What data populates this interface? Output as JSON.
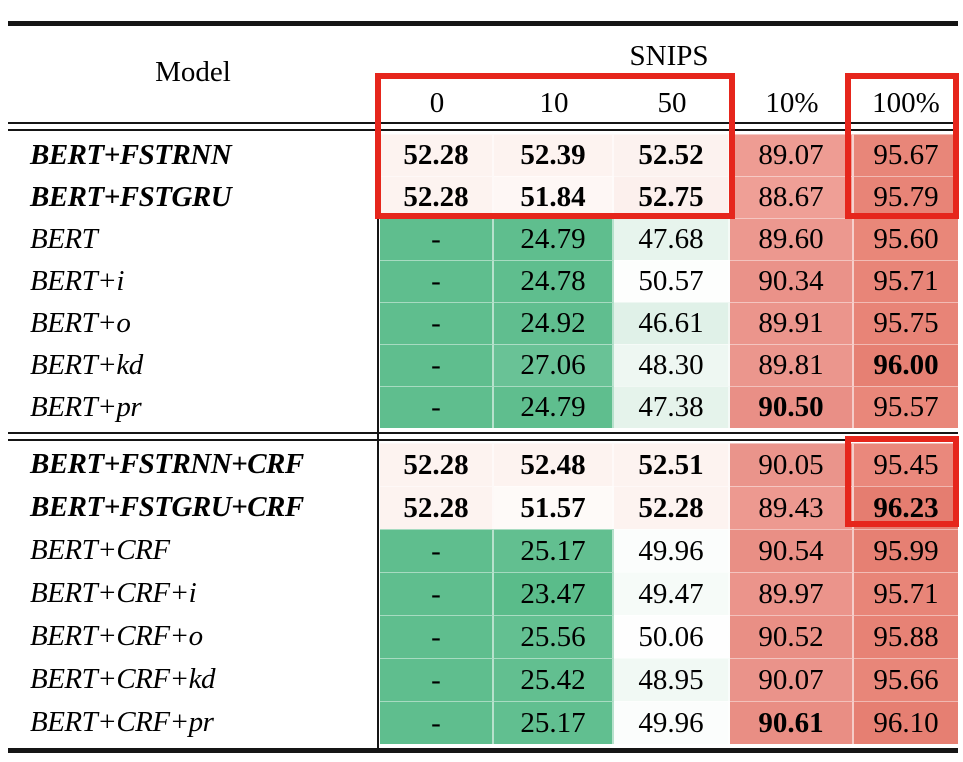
{
  "figure": {
    "type": "paper-results-table",
    "dataset_group_label": "SNIPS"
  },
  "table": {
    "header": {
      "model_label": "Model",
      "group_label": "SNIPS",
      "columns": [
        "0",
        "10",
        "50",
        "10%",
        "100%"
      ]
    },
    "colors": {
      "highlight_box": "#e6261c",
      "rule": "#151515",
      "green_base": "#5fbe8e",
      "salmon_10pct": "#ec9a90",
      "salmon_100pct": "#e8857a",
      "page_bg": "#ffffff"
    },
    "sections": [
      {
        "name": "without-crf",
        "rows": [
          {
            "model": "BERT+FSTRNN",
            "strong": true,
            "cells": [
              {
                "v": "52.28",
                "b": true,
                "bg": "#fdf3f0"
              },
              {
                "v": "52.39",
                "b": true,
                "bg": "#fdf3f0"
              },
              {
                "v": "52.52",
                "b": true,
                "bg": "#fcf2ef"
              },
              {
                "v": "89.07",
                "b": false,
                "bg": "#ee9c93"
              },
              {
                "v": "95.67",
                "b": false,
                "bg": "#e88679"
              }
            ]
          },
          {
            "model": "BERT+FSTGRU",
            "strong": true,
            "cells": [
              {
                "v": "52.28",
                "b": true,
                "bg": "#fdf3f0"
              },
              {
                "v": "51.84",
                "b": true,
                "bg": "#fef7f5"
              },
              {
                "v": "52.75",
                "b": true,
                "bg": "#fcf0ed"
              },
              {
                "v": "88.67",
                "b": false,
                "bg": "#ef9f96"
              },
              {
                "v": "95.79",
                "b": false,
                "bg": "#e88477"
              }
            ]
          },
          {
            "model": "BERT",
            "strong": false,
            "cells": [
              {
                "v": "-",
                "b": false,
                "bg": "#5fbe8e"
              },
              {
                "v": "24.79",
                "b": false,
                "bg": "#5fbe8e"
              },
              {
                "v": "47.68",
                "b": false,
                "bg": "#e7f4ed"
              },
              {
                "v": "89.60",
                "b": false,
                "bg": "#ec988f"
              },
              {
                "v": "95.60",
                "b": false,
                "bg": "#e98779"
              }
            ]
          },
          {
            "model": "BERT+i",
            "strong": false,
            "cells": [
              {
                "v": "-",
                "b": false,
                "bg": "#5fbe8e"
              },
              {
                "v": "24.78",
                "b": false,
                "bg": "#5fbe8e"
              },
              {
                "v": "50.57",
                "b": false,
                "bg": "#fdfefd"
              },
              {
                "v": "90.34",
                "b": false,
                "bg": "#ea9289"
              },
              {
                "v": "95.71",
                "b": false,
                "bg": "#e88578"
              }
            ]
          },
          {
            "model": "BERT+o",
            "strong": false,
            "cells": [
              {
                "v": "-",
                "b": false,
                "bg": "#5fbe8e"
              },
              {
                "v": "24.92",
                "b": false,
                "bg": "#60be8f"
              },
              {
                "v": "46.61",
                "b": false,
                "bg": "#e0f1e8"
              },
              {
                "v": "89.91",
                "b": false,
                "bg": "#eb958c"
              },
              {
                "v": "95.75",
                "b": false,
                "bg": "#e88477"
              }
            ]
          },
          {
            "model": "BERT+kd",
            "strong": false,
            "cells": [
              {
                "v": "-",
                "b": false,
                "bg": "#5fbe8e"
              },
              {
                "v": "27.06",
                "b": false,
                "bg": "#69c296"
              },
              {
                "v": "48.30",
                "b": false,
                "bg": "#eef7f2"
              },
              {
                "v": "89.81",
                "b": false,
                "bg": "#eb968d"
              },
              {
                "v": "96.00",
                "b": true,
                "bg": "#e68073"
              }
            ]
          },
          {
            "model": "BERT+pr",
            "strong": false,
            "cells": [
              {
                "v": "-",
                "b": false,
                "bg": "#5fbe8e"
              },
              {
                "v": "24.79",
                "b": false,
                "bg": "#5fbe8e"
              },
              {
                "v": "47.38",
                "b": false,
                "bg": "#e5f3eb"
              },
              {
                "v": "90.50",
                "b": true,
                "bg": "#e98f86"
              },
              {
                "v": "95.57",
                "b": false,
                "bg": "#e9877a"
              }
            ]
          }
        ]
      },
      {
        "name": "with-crf",
        "rows": [
          {
            "model": "BERT+FSTRNN+CRF",
            "strong": true,
            "cells": [
              {
                "v": "52.28",
                "b": true,
                "bg": "#fdf3f0"
              },
              {
                "v": "52.48",
                "b": true,
                "bg": "#fdf3f0"
              },
              {
                "v": "52.51",
                "b": true,
                "bg": "#fdf3f0"
              },
              {
                "v": "90.05",
                "b": false,
                "bg": "#ea948b"
              },
              {
                "v": "95.45",
                "b": false,
                "bg": "#ea887c"
              }
            ]
          },
          {
            "model": "BERT+FSTGRU+CRF",
            "strong": true,
            "cells": [
              {
                "v": "52.28",
                "b": true,
                "bg": "#fdf3f0"
              },
              {
                "v": "51.57",
                "b": true,
                "bg": "#fefaf8"
              },
              {
                "v": "52.28",
                "b": true,
                "bg": "#fdf3f0"
              },
              {
                "v": "89.43",
                "b": false,
                "bg": "#ed9990"
              },
              {
                "v": "96.23",
                "b": true,
                "bg": "#e57d70"
              }
            ]
          },
          {
            "model": "BERT+CRF",
            "strong": false,
            "cells": [
              {
                "v": "-",
                "b": false,
                "bg": "#5fbe8e"
              },
              {
                "v": "25.17",
                "b": false,
                "bg": "#62bf90"
              },
              {
                "v": "49.96",
                "b": false,
                "bg": "#fbfdfc"
              },
              {
                "v": "90.54",
                "b": false,
                "bg": "#e98f85"
              },
              {
                "v": "95.99",
                "b": false,
                "bg": "#e68073"
              }
            ]
          },
          {
            "model": "BERT+CRF+i",
            "strong": false,
            "cells": [
              {
                "v": "-",
                "b": false,
                "bg": "#5fbe8e"
              },
              {
                "v": "23.47",
                "b": false,
                "bg": "#5abc8a"
              },
              {
                "v": "49.47",
                "b": false,
                "bg": "#f6fbf8"
              },
              {
                "v": "89.97",
                "b": false,
                "bg": "#eb948b"
              },
              {
                "v": "95.71",
                "b": false,
                "bg": "#e88578"
              }
            ]
          },
          {
            "model": "BERT+CRF+o",
            "strong": false,
            "cells": [
              {
                "v": "-",
                "b": false,
                "bg": "#5fbe8e"
              },
              {
                "v": "25.56",
                "b": false,
                "bg": "#63c091"
              },
              {
                "v": "50.06",
                "b": false,
                "bg": "#fefefe"
              },
              {
                "v": "90.52",
                "b": false,
                "bg": "#e98f85"
              },
              {
                "v": "95.88",
                "b": false,
                "bg": "#e78275"
              }
            ]
          },
          {
            "model": "BERT+CRF+kd",
            "strong": false,
            "cells": [
              {
                "v": "-",
                "b": false,
                "bg": "#5fbe8e"
              },
              {
                "v": "25.42",
                "b": false,
                "bg": "#62bf90"
              },
              {
                "v": "48.95",
                "b": false,
                "bg": "#f1f9f4"
              },
              {
                "v": "90.07",
                "b": false,
                "bg": "#ea938a"
              },
              {
                "v": "95.66",
                "b": false,
                "bg": "#e88679"
              }
            ]
          },
          {
            "model": "BERT+CRF+pr",
            "strong": false,
            "cells": [
              {
                "v": "-",
                "b": false,
                "bg": "#5fbe8e"
              },
              {
                "v": "25.17",
                "b": false,
                "bg": "#61bf90"
              },
              {
                "v": "49.96",
                "b": false,
                "bg": "#fbfdfc"
              },
              {
                "v": "90.61",
                "b": true,
                "bg": "#e98e84"
              },
              {
                "v": "96.10",
                "b": false,
                "bg": "#e67f72"
              }
            ]
          }
        ]
      }
    ],
    "highlights": [
      {
        "name": "snips-0-10-50-top-models-box"
      },
      {
        "name": "100pct-column-top-models-box"
      },
      {
        "name": "100pct-column-crf-models-box"
      }
    ]
  }
}
